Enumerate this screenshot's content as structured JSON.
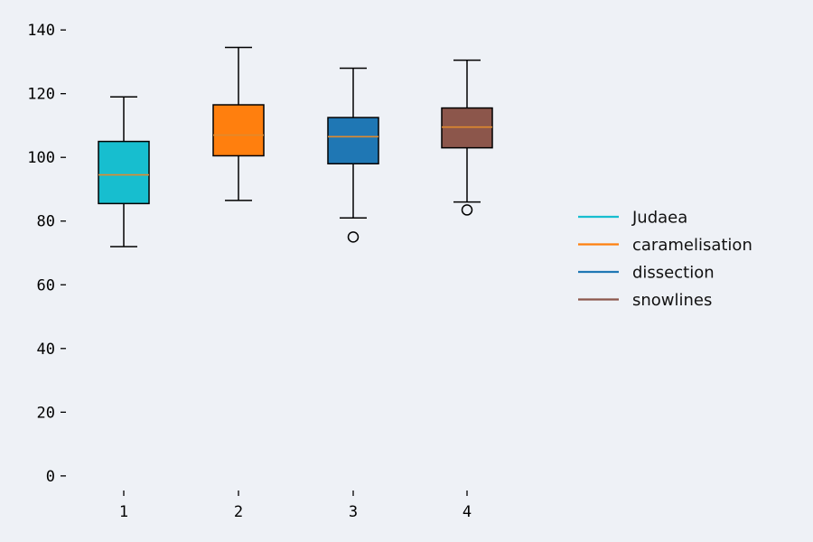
{
  "chart_data": {
    "type": "boxplot",
    "title": "",
    "xlabel": "",
    "ylabel": "",
    "ylim": [
      -6,
      146
    ],
    "y_ticks": [
      "0",
      "20",
      "40",
      "60",
      "80",
      "100",
      "120",
      "140"
    ],
    "x_ticks": [
      "1",
      "2",
      "3",
      "4"
    ],
    "grid": false,
    "legend_position": "right",
    "median_color": "#e08a2e",
    "series": [
      {
        "name": "Judaea",
        "color": "#17becf",
        "whisker_low": 72,
        "q1": 85.5,
        "median": 94.5,
        "q3": 105,
        "whisker_high": 119,
        "outliers": []
      },
      {
        "name": "caramelisation",
        "color": "#ff7f0e",
        "whisker_low": 86.5,
        "q1": 100.5,
        "median": 107,
        "q3": 116.5,
        "whisker_high": 134.5,
        "outliers": []
      },
      {
        "name": "dissection",
        "color": "#1f77b4",
        "whisker_low": 81,
        "q1": 98,
        "median": 106.5,
        "q3": 112.5,
        "whisker_high": 128,
        "outliers": [
          75
        ]
      },
      {
        "name": "snowlines",
        "color": "#8c564b",
        "whisker_low": 86,
        "q1": 103,
        "median": 109.5,
        "q3": 115.5,
        "whisker_high": 130.5,
        "outliers": [
          83.5
        ]
      }
    ]
  }
}
